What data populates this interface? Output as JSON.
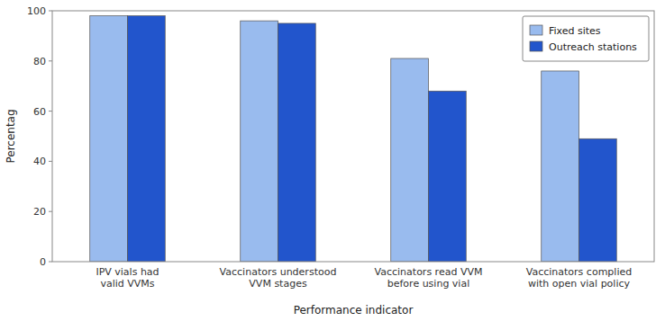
{
  "chart_data": {
    "type": "bar",
    "categories": [
      "IPV vials had\nvalid VVMs",
      "Vaccinators understood\nVVM stages",
      "Vaccinators read VVM\nbefore using vial",
      "Vaccinators complied\nwith open vial policy"
    ],
    "series": [
      {
        "name": "Fixed sites",
        "color": "#99BBEE",
        "values": [
          98,
          96,
          81,
          76
        ]
      },
      {
        "name": "Outreach stations",
        "color": "#2255CC",
        "values": [
          98,
          95,
          68,
          49
        ]
      }
    ],
    "xlabel": "Performance indicator",
    "ylabel": "Percentag",
    "ylim": [
      0,
      100
    ],
    "yticks": [
      0,
      20,
      40,
      60,
      80,
      100
    ],
    "grid": false,
    "legend": "upper right"
  }
}
